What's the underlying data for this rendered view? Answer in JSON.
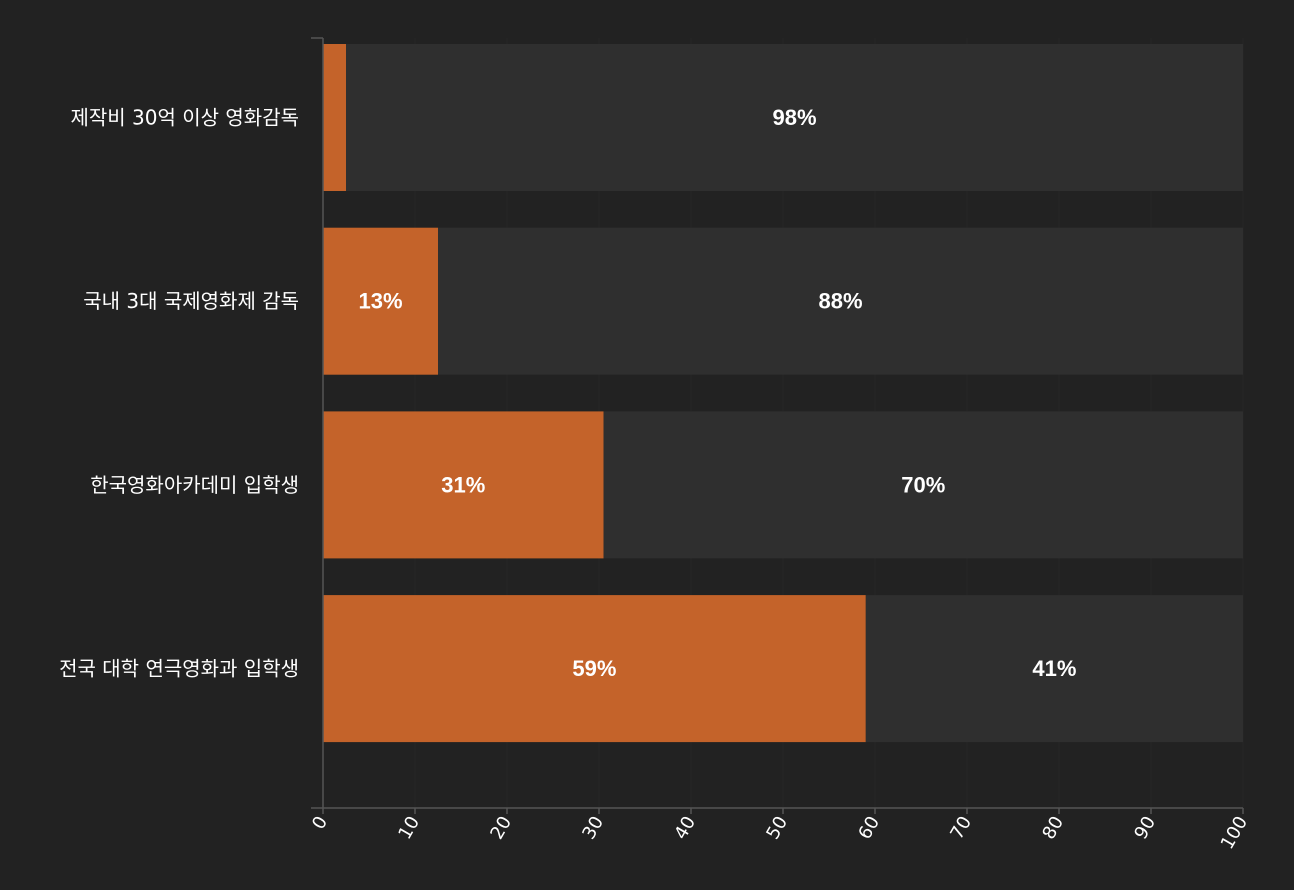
{
  "chart_data": {
    "type": "bar",
    "orientation": "horizontal",
    "stacked": true,
    "categories": [
      "제작비 30억 이상 영화감독",
      "국내 3대 국제영화제 감독",
      "한국영화아카데미 입학생",
      "전국 대학 연극영화과 입학생"
    ],
    "series": [
      {
        "values": [
          2.5,
          12.5,
          30.5,
          59
        ],
        "labels": [
          "",
          "13%",
          "31%",
          "59%"
        ],
        "color": "#c4632a"
      },
      {
        "values": [
          97.5,
          87.5,
          69.5,
          41
        ],
        "labels": [
          "98%",
          "88%",
          "70%",
          "41%"
        ],
        "color": "#2f2f2f"
      }
    ],
    "xlim": [
      0,
      100
    ],
    "xticks": [
      "0",
      "10",
      "20",
      "30",
      "40",
      "50",
      "60",
      "70",
      "80",
      "90",
      "100"
    ],
    "grid": true,
    "colors": {
      "background": "#222222",
      "axis": "#555555",
      "grid": "#262626",
      "text": "#ffffff"
    }
  }
}
